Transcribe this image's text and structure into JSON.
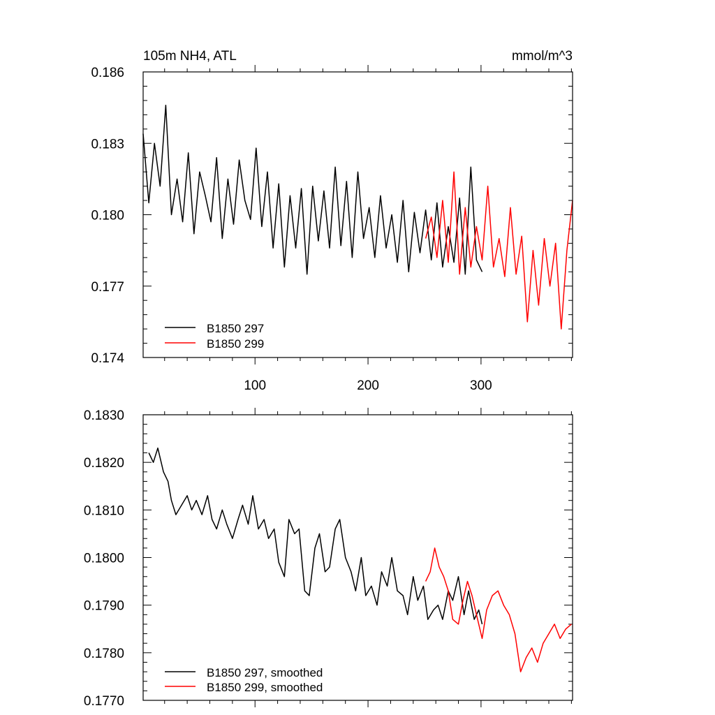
{
  "colors": {
    "black": "#000000",
    "red": "#ff0000",
    "background": "#ffffff"
  },
  "chart_data": [
    {
      "type": "line",
      "title_left": "105m NH4, ATL",
      "title_right": "mmol/m^3",
      "xlim": [
        1,
        381
      ],
      "ylim": [
        0.174,
        0.186
      ],
      "xticks": [
        100,
        200,
        300
      ],
      "xtick_labels": [
        "100",
        "200",
        "300"
      ],
      "yticks": [
        0.174,
        0.177,
        0.18,
        0.183,
        0.186
      ],
      "ytick_labels": [
        "0.174",
        "0.177",
        "0.180",
        "0.183",
        "0.186"
      ],
      "legend_position": "bottom-left",
      "series": [
        {
          "name": "B1850 297",
          "color": "#000000",
          "x": [
            1,
            6,
            11,
            16,
            21,
            26,
            31,
            36,
            41,
            46,
            51,
            56,
            61,
            66,
            71,
            76,
            81,
            86,
            91,
            96,
            101,
            106,
            111,
            116,
            121,
            126,
            131,
            136,
            141,
            146,
            151,
            156,
            161,
            166,
            171,
            176,
            181,
            186,
            191,
            196,
            201,
            206,
            211,
            216,
            221,
            226,
            231,
            236,
            241,
            246,
            251,
            256,
            261,
            266,
            271,
            276,
            281,
            286,
            291,
            296,
            301
          ],
          "y": [
            0.1834,
            0.1805,
            0.183,
            0.1812,
            0.1846,
            0.18,
            0.1815,
            0.1797,
            0.1826,
            0.1792,
            0.1818,
            0.1808,
            0.1797,
            0.1824,
            0.179,
            0.1815,
            0.1796,
            0.1823,
            0.1806,
            0.1798,
            0.1828,
            0.1795,
            0.1818,
            0.1786,
            0.1813,
            0.1778,
            0.1808,
            0.1786,
            0.1811,
            0.1775,
            0.1812,
            0.1789,
            0.181,
            0.1786,
            0.182,
            0.1787,
            0.1814,
            0.1782,
            0.1818,
            0.179,
            0.1803,
            0.1782,
            0.1808,
            0.1786,
            0.18,
            0.178,
            0.1806,
            0.1776,
            0.1801,
            0.1784,
            0.1802,
            0.1781,
            0.1805,
            0.1778,
            0.1795,
            0.178,
            0.1807,
            0.1775,
            0.182,
            0.1781,
            0.1776
          ]
        },
        {
          "name": "B1850 299",
          "color": "#ff0000",
          "x": [
            251,
            256,
            261,
            266,
            271,
            276,
            281,
            286,
            291,
            296,
            301,
            306,
            311,
            316,
            321,
            326,
            331,
            336,
            341,
            346,
            351,
            356,
            361,
            366,
            371,
            376,
            381
          ],
          "y": [
            0.179,
            0.1799,
            0.1782,
            0.1806,
            0.178,
            0.1818,
            0.1775,
            0.1803,
            0.1778,
            0.1795,
            0.1781,
            0.1812,
            0.1778,
            0.179,
            0.1774,
            0.1803,
            0.1775,
            0.1791,
            0.1755,
            0.1785,
            0.1762,
            0.179,
            0.177,
            0.1788,
            0.1752,
            0.1785,
            0.1806
          ]
        }
      ]
    },
    {
      "type": "line",
      "xlim": [
        1,
        381
      ],
      "ylim": [
        0.177,
        0.183
      ],
      "xticks": [
        100,
        200,
        300
      ],
      "yticks": [
        0.177,
        0.178,
        0.179,
        0.18,
        0.181,
        0.182,
        0.183
      ],
      "ytick_labels": [
        "0.1770",
        "0.1780",
        "0.1790",
        "0.1800",
        "0.1810",
        "0.1820",
        "0.1830"
      ],
      "legend_position": "bottom-left",
      "series": [
        {
          "name": "B1850 297, smoothed",
          "color": "#000000",
          "x": [
            6,
            10,
            14,
            19,
            23,
            26,
            30,
            35,
            40,
            44,
            48,
            53,
            58,
            62,
            66,
            71,
            75,
            80,
            85,
            89,
            94,
            98,
            103,
            108,
            112,
            117,
            121,
            126,
            130,
            135,
            139,
            144,
            148,
            153,
            157,
            162,
            166,
            171,
            175,
            180,
            185,
            189,
            194,
            198,
            203,
            208,
            212,
            217,
            221,
            226,
            231,
            235,
            240,
            244,
            249,
            253,
            258,
            262,
            266,
            271,
            275,
            280,
            285,
            289,
            294,
            298,
            301
          ],
          "y": [
            0.1822,
            0.182,
            0.1823,
            0.1818,
            0.1816,
            0.1812,
            0.1809,
            0.1811,
            0.1813,
            0.181,
            0.1812,
            0.1809,
            0.1813,
            0.1808,
            0.1806,
            0.181,
            0.1807,
            0.1804,
            0.1808,
            0.1811,
            0.1807,
            0.1813,
            0.1806,
            0.1808,
            0.1804,
            0.1806,
            0.1799,
            0.1796,
            0.1808,
            0.1805,
            0.1806,
            0.1793,
            0.1792,
            0.1802,
            0.1805,
            0.1797,
            0.1798,
            0.1806,
            0.1808,
            0.18,
            0.1797,
            0.1793,
            0.18,
            0.1792,
            0.1794,
            0.179,
            0.1797,
            0.1794,
            0.18,
            0.1793,
            0.1792,
            0.1788,
            0.1796,
            0.1791,
            0.1794,
            0.1787,
            0.1789,
            0.179,
            0.1787,
            0.1793,
            0.1791,
            0.1796,
            0.1788,
            0.1793,
            0.1787,
            0.1789,
            0.1786
          ]
        },
        {
          "name": "B1850 299, smoothed",
          "color": "#ff0000",
          "x": [
            251,
            255,
            259,
            263,
            267,
            271,
            275,
            280,
            284,
            288,
            292,
            296,
            301,
            305,
            310,
            315,
            320,
            325,
            330,
            335,
            340,
            345,
            350,
            355,
            360,
            365,
            370,
            375,
            380
          ],
          "y": [
            0.1795,
            0.1797,
            0.1802,
            0.1798,
            0.1796,
            0.1793,
            0.1787,
            0.1786,
            0.1791,
            0.1795,
            0.1792,
            0.1788,
            0.1783,
            0.1789,
            0.1792,
            0.1793,
            0.179,
            0.1788,
            0.1784,
            0.1776,
            0.1779,
            0.1781,
            0.1778,
            0.1782,
            0.1784,
            0.1786,
            0.1783,
            0.1785,
            0.1786
          ]
        }
      ]
    }
  ]
}
